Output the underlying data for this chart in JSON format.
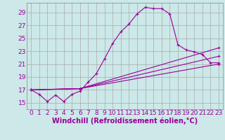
{
  "xlabel": "Windchill (Refroidissement éolien,°C)",
  "bg_color": "#cce8e8",
  "grid_color": "#aaaaaa",
  "line_color": "#990099",
  "x_ticks": [
    0,
    1,
    2,
    3,
    4,
    5,
    6,
    7,
    8,
    9,
    10,
    11,
    12,
    13,
    14,
    15,
    16,
    17,
    18,
    19,
    20,
    21,
    22,
    23
  ],
  "y_ticks": [
    15,
    17,
    19,
    21,
    23,
    25,
    27,
    29
  ],
  "xlim": [
    -0.5,
    23.5
  ],
  "ylim": [
    14.0,
    30.5
  ],
  "line1_x": [
    0,
    1,
    2,
    3,
    4,
    5,
    6,
    7,
    8,
    9,
    10,
    11,
    12,
    13,
    14,
    15,
    16,
    17,
    18,
    19,
    20,
    21,
    22,
    23
  ],
  "line1_y": [
    17.0,
    16.3,
    15.2,
    16.2,
    15.2,
    16.3,
    16.8,
    18.2,
    19.5,
    21.8,
    24.2,
    26.0,
    27.2,
    28.8,
    29.8,
    29.6,
    29.6,
    28.8,
    24.0,
    23.2,
    22.9,
    22.5,
    21.2,
    21.2
  ],
  "line2_x": [
    0,
    6,
    23
  ],
  "line2_y": [
    17.0,
    17.2,
    21.0
  ],
  "line3_x": [
    0,
    6,
    23
  ],
  "line3_y": [
    17.0,
    17.2,
    22.2
  ],
  "line4_x": [
    0,
    6,
    23
  ],
  "line4_y": [
    17.0,
    17.2,
    23.5
  ],
  "tick_fontsize": 6.5,
  "label_fontsize": 7.0
}
